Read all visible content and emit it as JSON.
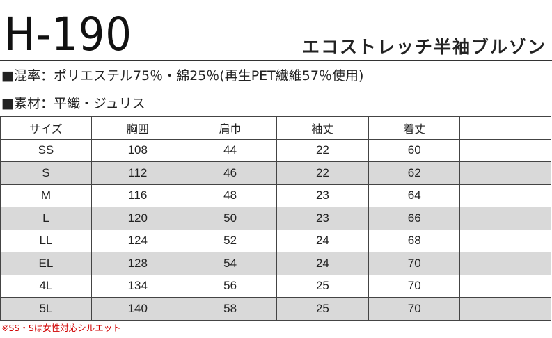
{
  "header": {
    "code": "H-190",
    "product_name": "エコストレッチ半袖ブルゾン"
  },
  "specs": {
    "blend": "■混率：ポリエステル75％・綿25％(再生PET繊維57％使用)",
    "material": "■素材：平織・ジュリス"
  },
  "size_table": {
    "columns": [
      "サイズ",
      "胸囲",
      "肩巾",
      "袖丈",
      "着丈",
      ""
    ],
    "rows": [
      [
        "SS",
        "108",
        "44",
        "22",
        "60",
        ""
      ],
      [
        "S",
        "112",
        "46",
        "22",
        "62",
        ""
      ],
      [
        "M",
        "116",
        "48",
        "23",
        "64",
        ""
      ],
      [
        "L",
        "120",
        "50",
        "23",
        "66",
        ""
      ],
      [
        "LL",
        "124",
        "52",
        "24",
        "68",
        ""
      ],
      [
        "EL",
        "128",
        "54",
        "24",
        "70",
        ""
      ],
      [
        "4L",
        "134",
        "56",
        "25",
        "70",
        ""
      ],
      [
        "5L",
        "140",
        "58",
        "25",
        "70",
        ""
      ]
    ]
  },
  "note": "※SS・Sは女性対応シルエット",
  "colors": {
    "shaded_row": "#d9d9d9",
    "note_text": "#d00000",
    "border": "#444444"
  }
}
